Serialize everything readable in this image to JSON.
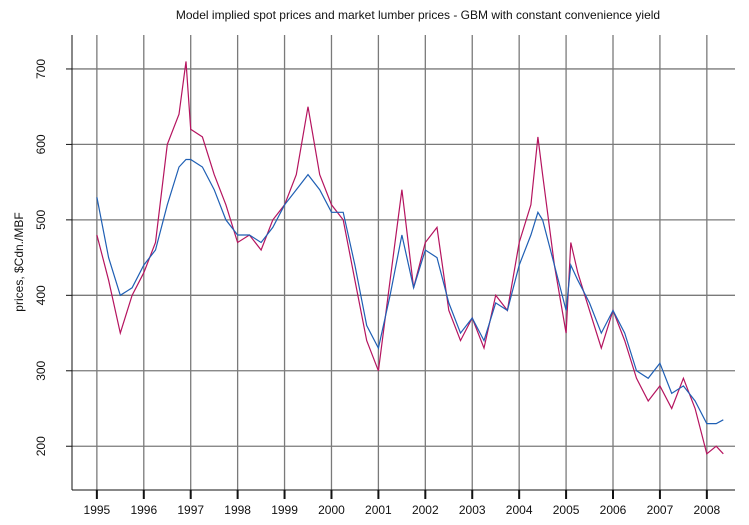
{
  "chart_data": {
    "type": "line",
    "title": "Model implied spot prices and market lumber prices - GBM with constant convenience yield",
    "y_label": "prices, $Cdn./MBF",
    "x": [
      1995,
      1995.25,
      1995.5,
      1995.75,
      1996,
      1996.25,
      1996.5,
      1996.75,
      1996.9,
      1997,
      1997.25,
      1997.5,
      1997.75,
      1998,
      1998.25,
      1998.5,
      1998.75,
      1999,
      1999.25,
      1999.5,
      1999.75,
      2000,
      2000.25,
      2000.5,
      2000.75,
      2001,
      2001.25,
      2001.5,
      2001.75,
      2002,
      2002.25,
      2002.5,
      2002.75,
      2003,
      2003.25,
      2003.5,
      2003.75,
      2004,
      2004.25,
      2004.4,
      2004.5,
      2004.75,
      2005,
      2005.1,
      2005.25,
      2005.5,
      2005.75,
      2006,
      2006.25,
      2006.5,
      2006.75,
      2007,
      2007.25,
      2007.5,
      2007.75,
      2008,
      2008.2,
      2008.35
    ],
    "series": [
      {
        "color": "#b5145f",
        "values": [
          480,
          420,
          350,
          400,
          430,
          470,
          600,
          640,
          710,
          620,
          610,
          560,
          520,
          470,
          480,
          460,
          500,
          520,
          560,
          650,
          560,
          520,
          500,
          420,
          340,
          300,
          420,
          540,
          410,
          470,
          490,
          380,
          340,
          370,
          330,
          400,
          380,
          470,
          520,
          610,
          560,
          440,
          350,
          470,
          430,
          380,
          330,
          380,
          340,
          290,
          260,
          280,
          250,
          290,
          250,
          190,
          200,
          190
        ]
      },
      {
        "color": "#1f5fb4",
        "values": [
          530,
          450,
          400,
          410,
          440,
          460,
          520,
          570,
          580,
          580,
          570,
          540,
          500,
          480,
          480,
          470,
          490,
          520,
          540,
          560,
          540,
          510,
          510,
          440,
          360,
          330,
          400,
          480,
          410,
          460,
          450,
          390,
          350,
          370,
          340,
          390,
          380,
          440,
          480,
          510,
          500,
          440,
          380,
          440,
          420,
          390,
          350,
          380,
          350,
          300,
          290,
          310,
          270,
          280,
          260,
          230,
          230,
          235
        ]
      }
    ],
    "xlim": [
      1994.47,
      2008.6
    ],
    "xticks": [
      1995,
      1996,
      1997,
      1998,
      1999,
      2000,
      2001,
      2002,
      2003,
      2004,
      2005,
      2006,
      2007,
      2008
    ],
    "ylim": [
      142,
      745
    ],
    "yticks": [
      200,
      300,
      400,
      500,
      600,
      700
    ],
    "grid": true
  }
}
